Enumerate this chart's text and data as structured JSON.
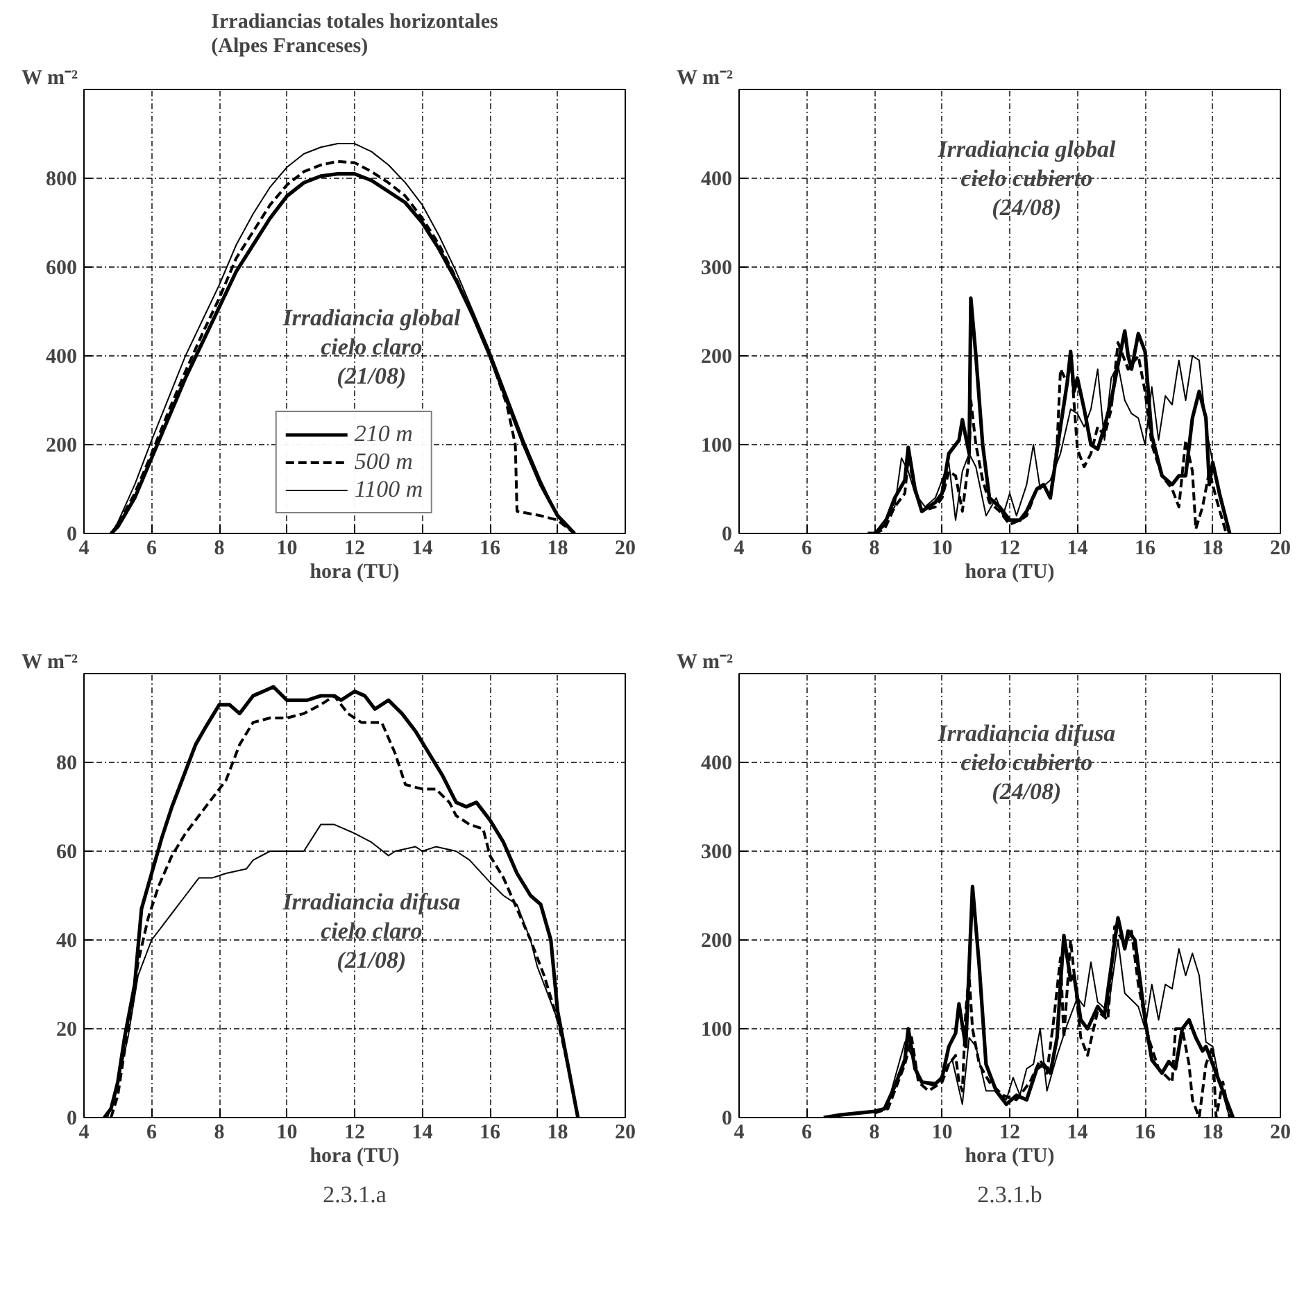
{
  "chart_data": [
    {
      "type": "line",
      "title": "Irradiancias totales horizontales\n(Alpes Franceses)",
      "xlabel": "hora (TU)",
      "ylabel": "W m⁻²",
      "xlim": [
        4,
        20
      ],
      "xticks": [
        4,
        6,
        8,
        10,
        12,
        14,
        16,
        18,
        20
      ],
      "ylim": [
        0,
        1000
      ],
      "yticks": [
        0,
        200,
        400,
        600,
        800
      ],
      "grid": true,
      "legend": "bottom",
      "annotations": [
        "Irradiancia global\ncielo claro\n(21/08)"
      ],
      "series": [
        {
          "name": "210 m",
          "color": "#000000",
          "line_style": "solid",
          "x": [
            4.8,
            5,
            5.5,
            6,
            6.5,
            7,
            7.5,
            8,
            8.5,
            9,
            9.5,
            10,
            10.5,
            11,
            11.5,
            12,
            12.5,
            13,
            13.5,
            14,
            14.5,
            15,
            15.5,
            16,
            16.5,
            17,
            17.5,
            18,
            18.5
          ],
          "values": [
            0,
            15,
            80,
            170,
            260,
            350,
            430,
            510,
            590,
            650,
            710,
            760,
            790,
            805,
            810,
            810,
            795,
            770,
            745,
            700,
            640,
            570,
            490,
            400,
            300,
            200,
            110,
            40,
            0
          ]
        },
        {
          "name": "500 m",
          "color": "#000000",
          "line_style": "dashed",
          "x": [
            4.8,
            5,
            5.5,
            6,
            6.5,
            7,
            7.5,
            8,
            8.5,
            9,
            9.5,
            10,
            10.5,
            11,
            11.5,
            12,
            12.5,
            13,
            13.5,
            14,
            14.5,
            15,
            15.5,
            16,
            16.5,
            16.75,
            16.8,
            17.5,
            18,
            18.5
          ],
          "values": [
            0,
            20,
            90,
            180,
            275,
            365,
            450,
            530,
            620,
            680,
            740,
            785,
            815,
            830,
            838,
            835,
            815,
            790,
            760,
            710,
            650,
            575,
            490,
            400,
            290,
            200,
            50,
            40,
            30,
            0
          ]
        },
        {
          "name": "1100 m",
          "color": "#000000",
          "line_style": "solid",
          "x": [
            4.8,
            5,
            5.5,
            6,
            6.5,
            7,
            7.5,
            8,
            8.5,
            9,
            9.5,
            10,
            10.5,
            11,
            11.5,
            12,
            12.5,
            13,
            13.5,
            14,
            14.5,
            15,
            15.5,
            16,
            16.5,
            17,
            17.5,
            18,
            18.5
          ],
          "values": [
            0,
            25,
            110,
            210,
            305,
            400,
            480,
            560,
            650,
            720,
            780,
            825,
            855,
            870,
            878,
            878,
            860,
            830,
            790,
            740,
            670,
            590,
            500,
            410,
            310,
            210,
            120,
            40,
            0
          ]
        }
      ]
    },
    {
      "type": "line",
      "xlabel": "hora (TU)",
      "ylabel": "W m⁻²",
      "xlim": [
        4,
        20
      ],
      "xticks": [
        4,
        6,
        8,
        10,
        12,
        14,
        16,
        18,
        20
      ],
      "ylim": [
        0,
        500
      ],
      "yticks": [
        0,
        100,
        200,
        300,
        400
      ],
      "grid": true,
      "annotations": [
        "Irradiancia global\ncielo cubierto\n(24/08)"
      ],
      "series": [
        {
          "color": "#000000",
          "line_style": "solid",
          "x": [
            7.8,
            8,
            8.3,
            8.6,
            8.9,
            9.0,
            9.2,
            9.4,
            9.8,
            10,
            10.2,
            10.5,
            10.6,
            10.8,
            10.85,
            11.0,
            11.2,
            11.4,
            11.7,
            12,
            12.3,
            12.5,
            12.8,
            13,
            13.2,
            13.5,
            13.7,
            13.8,
            13.9,
            14,
            14.2,
            14.4,
            14.6,
            14.8,
            15,
            15.2,
            15.4,
            15.5,
            15.6,
            15.8,
            16,
            16.2,
            16.5,
            16.8,
            17,
            17.2,
            17.4,
            17.6,
            17.8,
            17.9,
            18,
            18.2,
            18.5
          ],
          "values": [
            0,
            0,
            10,
            40,
            60,
            97,
            50,
            25,
            35,
            45,
            90,
            105,
            128,
            90,
            265,
            200,
            100,
            40,
            30,
            15,
            15,
            25,
            50,
            55,
            40,
            120,
            170,
            205,
            160,
            175,
            140,
            100,
            95,
            120,
            150,
            190,
            228,
            200,
            185,
            225,
            205,
            110,
            65,
            55,
            65,
            65,
            130,
            160,
            130,
            55,
            80,
            45,
            0
          ]
        },
        {
          "color": "#000000",
          "line_style": "dashed",
          "x": [
            8,
            8.3,
            8.6,
            8.9,
            9.0,
            9.2,
            9.4,
            9.8,
            10,
            10.2,
            10.4,
            10.6,
            10.8,
            10.85,
            11,
            11.2,
            11.4,
            11.7,
            12,
            12.3,
            12.5,
            12.8,
            13,
            13.2,
            13.4,
            13.5,
            13.7,
            13.8,
            14,
            14.2,
            14.4,
            14.6,
            14.8,
            15,
            15.2,
            15.5,
            15.8,
            16,
            16.2,
            16.5,
            16.8,
            17,
            17.2,
            17.4,
            17.5,
            17.7,
            17.9,
            18.1,
            18.4
          ],
          "values": [
            0,
            5,
            30,
            45,
            85,
            50,
            25,
            30,
            40,
            70,
            65,
            25,
            85,
            150,
            100,
            60,
            35,
            25,
            10,
            15,
            20,
            50,
            55,
            40,
            100,
            185,
            170,
            200,
            95,
            75,
            90,
            120,
            110,
            140,
            215,
            185,
            200,
            160,
            100,
            65,
            50,
            30,
            105,
            70,
            5,
            30,
            70,
            40,
            0
          ]
        },
        {
          "color": "#000000",
          "line_style": "solid",
          "x": [
            8,
            8.3,
            8.6,
            8.8,
            9.0,
            9.2,
            9.5,
            9.8,
            10,
            10.2,
            10.4,
            10.6,
            10.8,
            11,
            11.3,
            11.6,
            11.8,
            12,
            12.2,
            12.5,
            12.7,
            12.9,
            13.2,
            13.5,
            13.8,
            14,
            14.2,
            14.4,
            14.6,
            14.8,
            15,
            15.2,
            15.4,
            15.6,
            15.8,
            16,
            16.2,
            16.4,
            16.6,
            16.8,
            17,
            17.2,
            17.4,
            17.6,
            17.8,
            18,
            18.2,
            18.5
          ],
          "values": [
            0,
            15,
            30,
            85,
            70,
            45,
            30,
            40,
            60,
            80,
            15,
            70,
            90,
            75,
            20,
            40,
            20,
            45,
            20,
            55,
            100,
            50,
            60,
            90,
            140,
            135,
            120,
            140,
            185,
            105,
            175,
            190,
            150,
            135,
            130,
            100,
            165,
            105,
            155,
            145,
            195,
            150,
            200,
            195,
            120,
            80,
            40,
            0
          ]
        }
      ]
    },
    {
      "type": "line",
      "xlabel": "hora (TU)",
      "ylabel": "W m⁻²",
      "xlim": [
        4,
        20
      ],
      "xticks": [
        4,
        6,
        8,
        10,
        12,
        14,
        16,
        18,
        20
      ],
      "ylim": [
        0,
        100
      ],
      "yticks": [
        0,
        20,
        40,
        60,
        80
      ],
      "grid": true,
      "annotations": [
        "Irradiancia difusa\ncielo claro\n(21/08)",
        "2.3.1.a"
      ],
      "series": [
        {
          "color": "#000000",
          "line_style": "solid",
          "x": [
            4.6,
            4.8,
            5,
            5.2,
            5.5,
            5.7,
            6,
            6.3,
            6.6,
            7,
            7.3,
            7.6,
            8,
            8.3,
            8.6,
            9,
            9.3,
            9.6,
            10,
            10.3,
            10.6,
            11,
            11.4,
            11.6,
            12,
            12.3,
            12.6,
            13,
            13.4,
            13.8,
            14.2,
            14.6,
            15,
            15.3,
            15.6,
            16,
            16.4,
            16.8,
            17.2,
            17.5,
            17.8,
            18,
            18.3,
            18.6
          ],
          "values": [
            0,
            2,
            8,
            18,
            30,
            47,
            55,
            63,
            70,
            78,
            84,
            88,
            93,
            93,
            91,
            95,
            96,
            97,
            94,
            94,
            94,
            95,
            95,
            94,
            96,
            95,
            92,
            94,
            91,
            87,
            82,
            77,
            71,
            70,
            71,
            67,
            62,
            55,
            50,
            48,
            40,
            24,
            12,
            0
          ]
        },
        {
          "color": "#000000",
          "line_style": "dashed",
          "x": [
            4.8,
            5,
            5.3,
            5.6,
            5.9,
            6.2,
            6.6,
            7,
            7.4,
            7.8,
            8.2,
            8.6,
            9,
            9.5,
            10,
            10.5,
            11,
            11.4,
            11.8,
            12.2,
            12.8,
            13.2,
            13.5,
            14,
            14.4,
            14.8,
            15,
            15.4,
            15.8,
            16,
            16.4,
            16.8,
            17.2,
            17.6,
            18,
            18.3,
            18.6
          ],
          "values": [
            0,
            5,
            20,
            35,
            45,
            52,
            59,
            64,
            68,
            72,
            76,
            84,
            89,
            90,
            90,
            91,
            93,
            95,
            91,
            89,
            89,
            82,
            75,
            74,
            74,
            71,
            68,
            66,
            65,
            59,
            54,
            47,
            40,
            32,
            22,
            12,
            0
          ]
        },
        {
          "color": "#000000",
          "line_style": "solid",
          "x": [
            4.7,
            5,
            5.3,
            5.6,
            6,
            6.4,
            7,
            7.4,
            7.8,
            8.2,
            8.8,
            9,
            9.5,
            10,
            10.5,
            11,
            11.4,
            12,
            12.5,
            13,
            13.2,
            13.8,
            14,
            14.4,
            15,
            15.4,
            16,
            16.4,
            16.8,
            17.2,
            17.4,
            17.8,
            18,
            18.3,
            18.6
          ],
          "values": [
            0,
            8,
            18,
            32,
            40,
            44,
            50,
            54,
            54,
            55,
            56,
            58,
            60,
            60,
            60,
            66,
            66,
            64,
            62,
            59,
            60,
            61,
            60,
            61,
            60,
            58,
            53,
            50,
            48,
            40,
            34,
            26,
            22,
            12,
            0
          ]
        }
      ]
    },
    {
      "type": "line",
      "xlabel": "hora (TU)",
      "ylabel": "W m⁻²",
      "xlim": [
        4,
        20
      ],
      "xticks": [
        4,
        6,
        8,
        10,
        12,
        14,
        16,
        18,
        20
      ],
      "ylim": [
        0,
        500
      ],
      "yticks": [
        0,
        100,
        200,
        300,
        400
      ],
      "grid": true,
      "annotations": [
        "Irradiancia difusa\ncielo cubierto\n(24/08)",
        "2.3.1.b"
      ],
      "series": [
        {
          "color": "#000000",
          "line_style": "solid",
          "x": [
            6.5,
            7,
            7.5,
            8,
            8.3,
            8.6,
            8.9,
            9.0,
            9.2,
            9.4,
            9.8,
            10,
            10.2,
            10.4,
            10.5,
            10.7,
            10.9,
            11.1,
            11.3,
            11.6,
            11.9,
            12.2,
            12.5,
            12.8,
            13,
            13.2,
            13.4,
            13.5,
            13.6,
            13.8,
            13.9,
            14.1,
            14.3,
            14.6,
            14.8,
            15,
            15.2,
            15.4,
            15.5,
            15.7,
            16,
            16.2,
            16.5,
            16.7,
            16.9,
            17.1,
            17.3,
            17.5,
            17.7,
            17.8,
            18,
            18.3,
            18.6
          ],
          "values": [
            0,
            3,
            5,
            7,
            10,
            35,
            65,
            100,
            55,
            40,
            38,
            45,
            80,
            95,
            128,
            80,
            260,
            170,
            60,
            30,
            15,
            25,
            20,
            55,
            60,
            50,
            90,
            150,
            205,
            155,
            160,
            110,
            100,
            125,
            115,
            170,
            225,
            190,
            210,
            200,
            110,
            65,
            50,
            63,
            55,
            100,
            110,
            90,
            75,
            80,
            60,
            30,
            0
          ]
        },
        {
          "color": "#000000",
          "line_style": "dashed",
          "x": [
            8,
            8.4,
            8.6,
            8.9,
            9.1,
            9.3,
            9.6,
            10,
            10.2,
            10.4,
            10.5,
            10.6,
            10.7,
            10.8,
            10.9,
            11.1,
            11.4,
            11.8,
            12.2,
            12.6,
            12.9,
            13.1,
            13.3,
            13.5,
            13.6,
            13.8,
            14.1,
            14.3,
            14.6,
            14.9,
            15.1,
            15.4,
            15.6,
            15.8,
            16.1,
            16.4,
            16.8,
            16.9,
            17.1,
            17.3,
            17.4,
            17.6,
            17.8,
            18,
            18.1,
            18.3,
            18.5
          ],
          "values": [
            5,
            10,
            30,
            60,
            90,
            40,
            30,
            40,
            60,
            70,
            40,
            30,
            120,
            160,
            100,
            60,
            40,
            25,
            20,
            40,
            65,
            50,
            110,
            180,
            90,
            200,
            90,
            70,
            120,
            110,
            215,
            195,
            210,
            150,
            90,
            55,
            40,
            100,
            100,
            60,
            20,
            0,
            60,
            80,
            0,
            40,
            0
          ]
        },
        {
          "color": "#000000",
          "line_style": "solid",
          "x": [
            8.5,
            8.9,
            9.1,
            9.4,
            9.8,
            10.1,
            10.3,
            10.6,
            10.8,
            11,
            11.3,
            11.6,
            11.9,
            12.1,
            12.3,
            12.5,
            12.7,
            12.9,
            13.1,
            13.4,
            13.7,
            14,
            14.2,
            14.4,
            14.6,
            14.9,
            15.2,
            15.4,
            15.8,
            16,
            16.2,
            16.4,
            16.6,
            16.8,
            17,
            17.2,
            17.4,
            17.6,
            17.8,
            18,
            18.2,
            18.5
          ],
          "values": [
            30,
            85,
            70,
            40,
            35,
            55,
            65,
            15,
            90,
            80,
            30,
            30,
            20,
            45,
            25,
            55,
            60,
            100,
            30,
            70,
            105,
            135,
            125,
            175,
            130,
            120,
            200,
            140,
            125,
            100,
            150,
            110,
            150,
            145,
            190,
            160,
            185,
            160,
            85,
            80,
            40,
            0
          ]
        }
      ]
    }
  ]
}
